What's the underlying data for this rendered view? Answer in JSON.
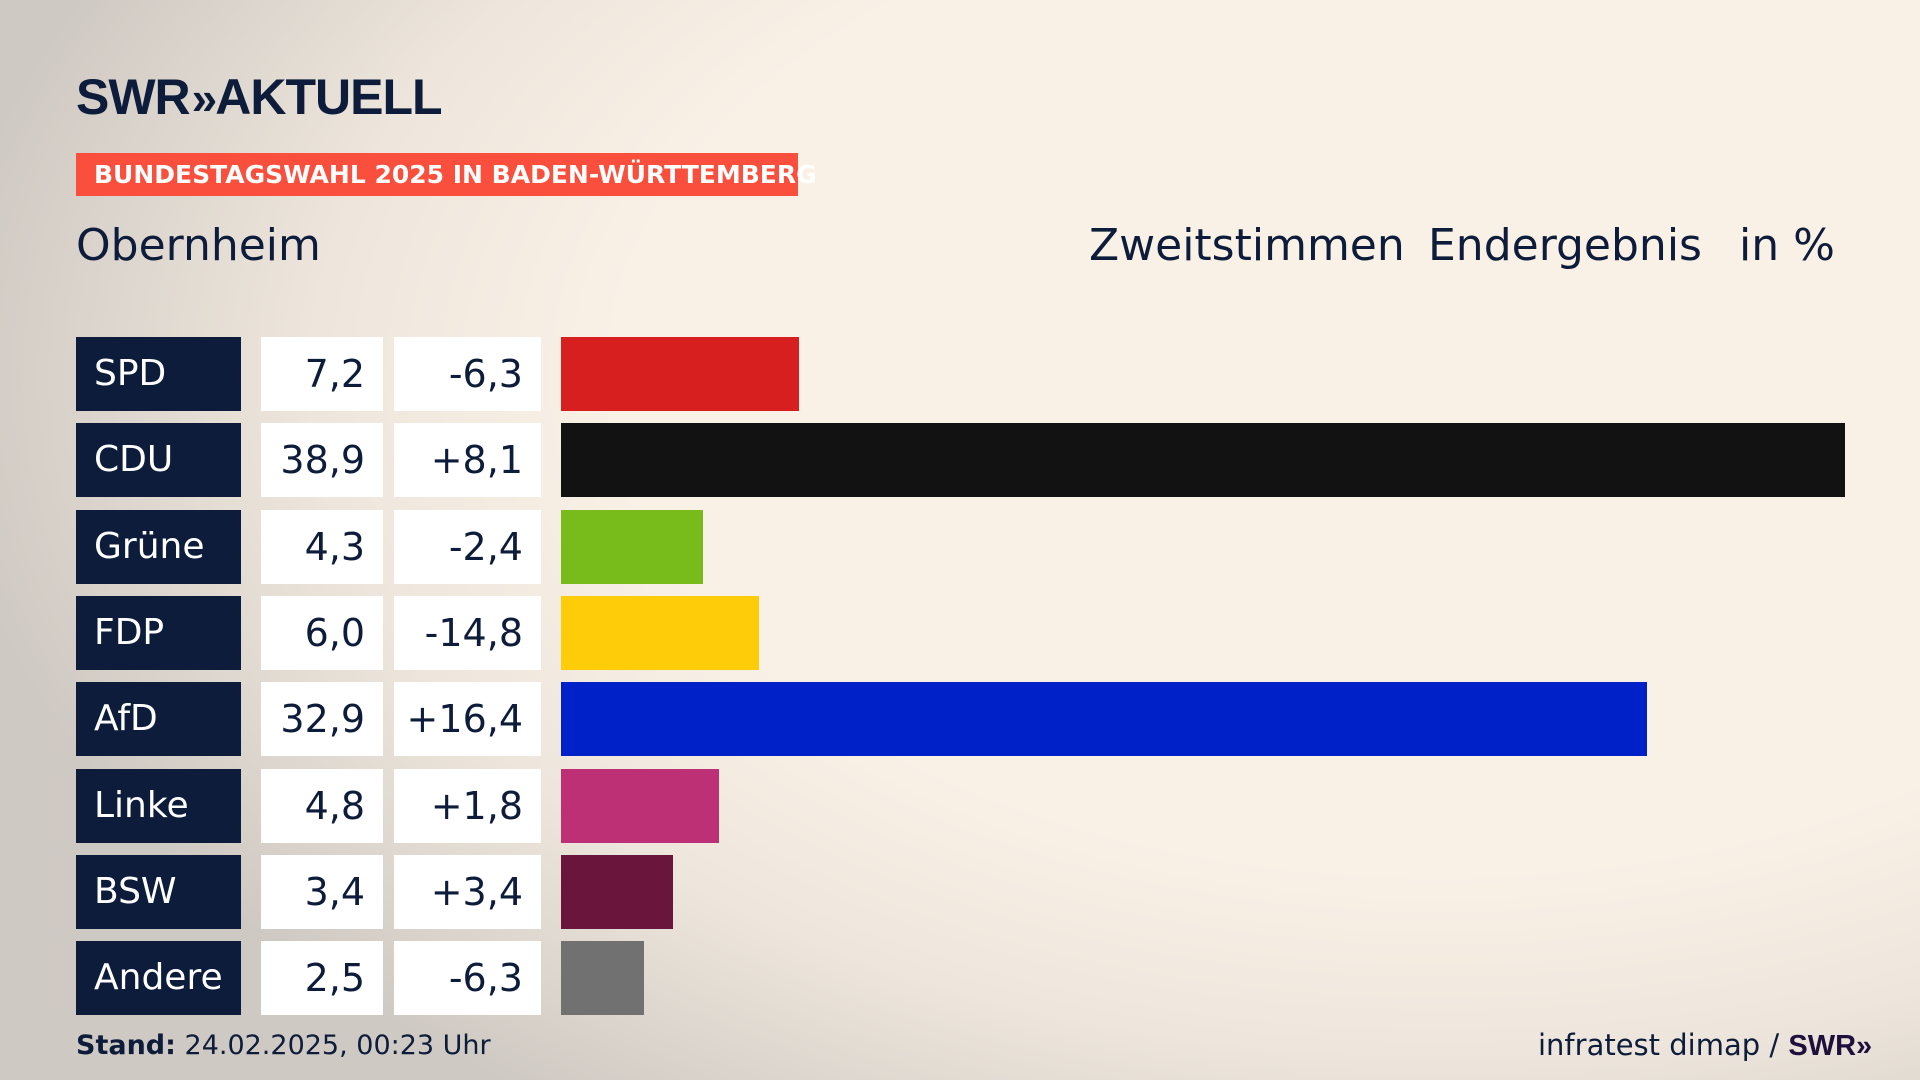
{
  "header": {
    "logo": "SWR AKTUELL",
    "logo_parts": {
      "swr": "SWR",
      "chevrons": "»",
      "aktuell": "AKTUELL"
    },
    "banner": "BUNDESTAGSWAHL 2025 IN BADEN-WÜRTTEMBERG",
    "place": "Obernheim",
    "vote_type": "Zweitstimmen",
    "result_type": "Endergebnis",
    "unit": "in %"
  },
  "chart_data": {
    "type": "bar",
    "orientation": "horizontal",
    "title": "Obernheim – Zweitstimmen Endergebnis in %",
    "categories": [
      "SPD",
      "CDU",
      "Grüne",
      "FDP",
      "AfD",
      "Linke",
      "BSW",
      "Andere"
    ],
    "values": [
      7.2,
      38.9,
      4.3,
      6.0,
      32.9,
      4.8,
      3.4,
      2.5
    ],
    "value_labels": [
      "7,2",
      "38,9",
      "4,3",
      "6,0",
      "32,9",
      "4,8",
      "3,4",
      "2,5"
    ],
    "changes": [
      -6.3,
      8.1,
      -2.4,
      -14.8,
      16.4,
      1.8,
      3.4,
      -6.3
    ],
    "change_labels": [
      "-6,3",
      "+8,1",
      "-2,4",
      "-14,8",
      "+16,4",
      "+1,8",
      "+3,4",
      "-6,3"
    ],
    "colors": [
      "#d71f1f",
      "#121212",
      "#78bc1b",
      "#ffcc09",
      "#0021c8",
      "#bd3075",
      "#6a163c",
      "#717171"
    ],
    "xlim": [
      0,
      38.9
    ]
  },
  "footer": {
    "stand_label": "Stand:",
    "stand_value": "24.02.2025, 00:23 Uhr",
    "source": "infratest dimap /",
    "source_brand": "SWR»"
  }
}
